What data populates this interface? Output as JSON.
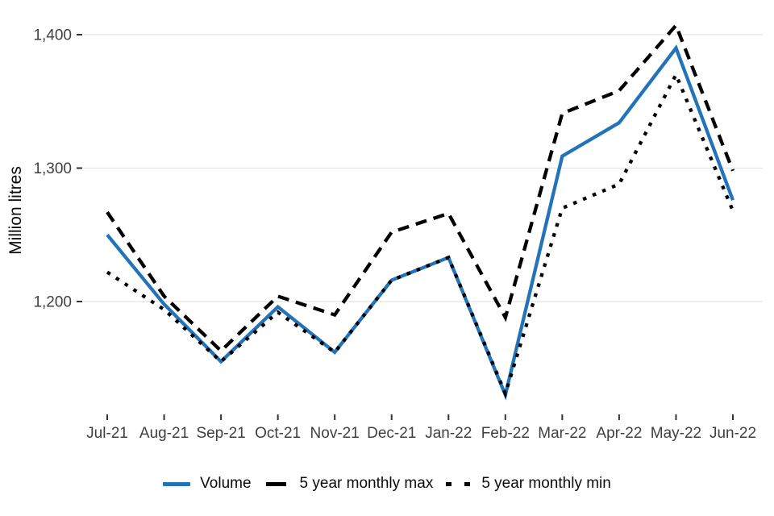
{
  "colors": {
    "background": "#ffffff",
    "grid": "#e4e4e4",
    "axis_text": "#404040",
    "tick_mark": "#333333",
    "volume_blue": "#2273b8",
    "series_black": "#000000"
  },
  "chart_data": {
    "type": "line",
    "title": "",
    "xlabel": "",
    "ylabel": "Million litres",
    "grid": "horizontal gridlines only, no panel border",
    "legend_position": "bottom-center",
    "ylim": [
      1115,
      1425
    ],
    "y_ticks": [
      {
        "value": 1200,
        "label": "1,200"
      },
      {
        "value": 1300,
        "label": "1,300"
      },
      {
        "value": 1400,
        "label": "1,400"
      }
    ],
    "categories": [
      "Jul-21",
      "Aug-21",
      "Sep-21",
      "Oct-21",
      "Nov-21",
      "Dec-21",
      "Jan-22",
      "Feb-22",
      "Mar-22",
      "Apr-22",
      "May-22",
      "Jun-22"
    ],
    "series": [
      {
        "name": "Volume",
        "line_style": "solid",
        "color": "#2273b8",
        "values": [
          1250,
          1198,
          1155,
          1196,
          1162,
          1216,
          1233,
          1130,
          1309,
          1334,
          1390,
          1276
        ]
      },
      {
        "name": "5 year monthly max",
        "line_style": "dashed",
        "color": "#000000",
        "values": [
          1267,
          1204,
          1163,
          1204,
          1190,
          1252,
          1266,
          1188,
          1341,
          1358,
          1407,
          1298
        ]
      },
      {
        "name": "5 year monthly min",
        "line_style": "dotted",
        "color": "#000000",
        "values": [
          1222,
          1194,
          1155,
          1192,
          1162,
          1216,
          1233,
          1131,
          1270,
          1288,
          1370,
          1268
        ]
      }
    ]
  }
}
